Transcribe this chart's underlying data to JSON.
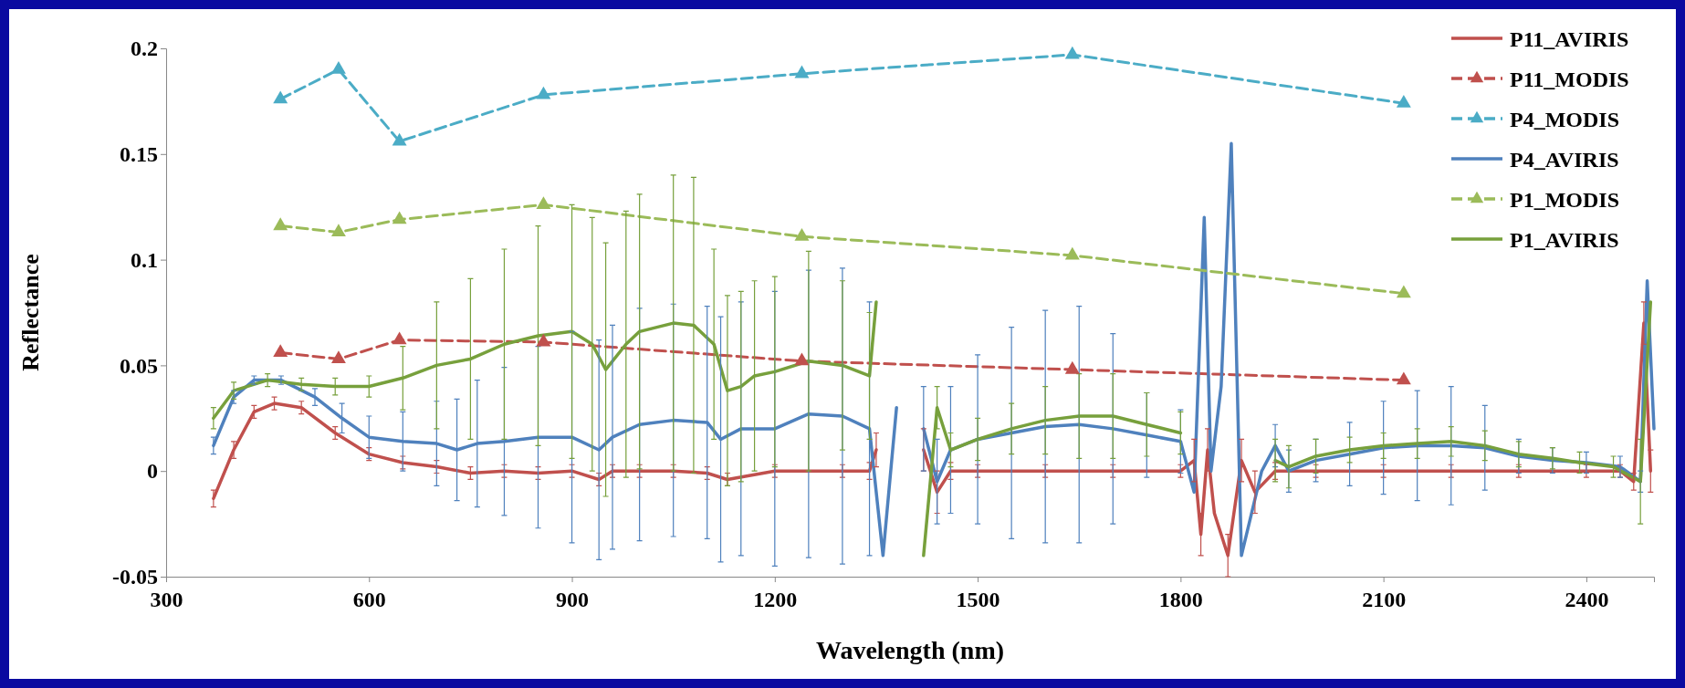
{
  "chart_data": {
    "type": "line",
    "xlabel": "Wavelength (nm)",
    "ylabel": "Reflectance",
    "xlim": [
      300,
      2500
    ],
    "ylim": [
      -0.05,
      0.2
    ],
    "xticks": [
      300,
      600,
      900,
      1200,
      1500,
      1800,
      2100,
      2400
    ],
    "yticks": [
      -0.05,
      0,
      0.05,
      0.1,
      0.15,
      0.2
    ],
    "grid": false,
    "legend": "top right",
    "series": [
      {
        "name": "P11_AVIRIS",
        "color": "#c0504d",
        "marker": "none",
        "line_style": "solid",
        "x": [
          370,
          400,
          430,
          460,
          500,
          550,
          600,
          650,
          700,
          750,
          800,
          850,
          900,
          940,
          960,
          1000,
          1050,
          1100,
          1130,
          1200,
          1300,
          1340,
          1350,
          1370,
          1400,
          1420,
          1440,
          1460,
          1500,
          1600,
          1700,
          1800,
          1820,
          1830,
          1840,
          1850,
          1870,
          1890,
          1910,
          1940,
          2000,
          2100,
          2200,
          2300,
          2400,
          2450,
          2470,
          2485,
          2495
        ],
        "values": [
          -0.013,
          0.01,
          0.028,
          0.032,
          0.03,
          0.018,
          0.008,
          0.004,
          0.002,
          -0.001,
          0,
          -0.001,
          0,
          -0.004,
          0,
          0,
          0,
          -0.001,
          -0.004,
          0,
          0,
          0,
          0.01,
          null,
          null,
          0.01,
          -0.01,
          0,
          0,
          0,
          0,
          0,
          0.005,
          -0.03,
          0.01,
          -0.02,
          -0.04,
          0.005,
          -0.01,
          0,
          0,
          0,
          0,
          0,
          0,
          0,
          -0.005,
          0.07,
          0
        ],
        "errors": [
          0.004,
          0.004,
          0.003,
          0.003,
          0.003,
          0.003,
          0.003,
          0.003,
          0.003,
          0.003,
          0.003,
          0.003,
          0.003,
          0.003,
          0.003,
          0.003,
          0.003,
          0.003,
          0.003,
          0.003,
          0.003,
          0.004,
          0.008,
          null,
          null,
          0.01,
          0.01,
          0.004,
          0.003,
          0.003,
          0.003,
          0.003,
          0.01,
          0.01,
          0.01,
          null,
          0.01,
          0.01,
          0.01,
          0.004,
          0.003,
          0.003,
          0.003,
          0.003,
          0.003,
          0.003,
          0.004,
          0.01,
          0.01
        ]
      },
      {
        "name": "P11_MODIS",
        "color": "#c0504d",
        "marker": "triangle",
        "line_style": "dashed",
        "x": [
          469,
          555,
          645,
          858,
          1240,
          1640,
          2130
        ],
        "values": [
          0.056,
          0.053,
          0.062,
          0.061,
          0.052,
          0.048,
          0.043
        ]
      },
      {
        "name": "P4_MODIS",
        "color": "#4bacc6",
        "marker": "triangle",
        "line_style": "dashed",
        "x": [
          469,
          555,
          645,
          858,
          1240,
          1640,
          2130
        ],
        "values": [
          0.176,
          0.19,
          0.156,
          0.178,
          0.188,
          0.197,
          0.174
        ]
      },
      {
        "name": "P4_AVIRIS",
        "color": "#4f81bd",
        "marker": "none",
        "line_style": "solid",
        "x": [
          370,
          400,
          430,
          470,
          520,
          560,
          600,
          650,
          700,
          730,
          760,
          800,
          850,
          900,
          940,
          960,
          1000,
          1050,
          1100,
          1120,
          1150,
          1200,
          1250,
          1300,
          1340,
          1360,
          1380,
          1390,
          1420,
          1440,
          1460,
          1500,
          1550,
          1600,
          1650,
          1700,
          1750,
          1800,
          1820,
          1835,
          1845,
          1860,
          1875,
          1890,
          1920,
          1940,
          1960,
          2000,
          2050,
          2100,
          2150,
          2200,
          2250,
          2300,
          2350,
          2400,
          2450,
          2480,
          2490,
          2500
        ],
        "values": [
          0.012,
          0.035,
          0.043,
          0.043,
          0.035,
          0.025,
          0.016,
          0.014,
          0.013,
          0.01,
          0.013,
          0.014,
          0.016,
          0.016,
          0.01,
          0.016,
          0.022,
          0.024,
          0.023,
          0.015,
          0.02,
          0.02,
          0.027,
          0.026,
          0.02,
          -0.04,
          0.03,
          null,
          0.02,
          -0.005,
          0.01,
          0.015,
          0.018,
          0.021,
          0.022,
          0.02,
          0.017,
          0.014,
          -0.01,
          0.12,
          0,
          0.04,
          0.155,
          -0.04,
          0,
          0.012,
          0,
          0.005,
          0.008,
          0.011,
          0.012,
          0.012,
          0.011,
          0.007,
          0.005,
          0.004,
          0.002,
          -0.005,
          0.09,
          0.02
        ],
        "errors": [
          0.004,
          0.003,
          0.002,
          0.002,
          0.004,
          0.007,
          0.01,
          0.014,
          0.02,
          0.024,
          0.03,
          0.035,
          0.043,
          0.05,
          0.052,
          0.053,
          0.055,
          0.055,
          0.055,
          0.058,
          0.06,
          0.065,
          0.068,
          0.07,
          0.06,
          null,
          null,
          null,
          0.02,
          0.02,
          0.03,
          0.04,
          0.05,
          0.055,
          0.056,
          0.045,
          0.02,
          0.015,
          null,
          null,
          null,
          null,
          null,
          null,
          null,
          0.01,
          0.01,
          0.01,
          0.015,
          0.022,
          0.026,
          0.028,
          0.02,
          0.008,
          0.006,
          0.005,
          0.005,
          0.005,
          null,
          null
        ]
      },
      {
        "name": "P1_MODIS",
        "color": "#9bbb59",
        "marker": "triangle",
        "line_style": "dashed",
        "x": [
          469,
          555,
          645,
          858,
          1240,
          1640,
          2130
        ],
        "values": [
          0.116,
          0.113,
          0.119,
          0.126,
          0.111,
          0.102,
          0.084
        ]
      },
      {
        "name": "P1_AVIRIS",
        "color": "#77a03c",
        "marker": "none",
        "line_style": "solid",
        "x": [
          370,
          400,
          450,
          500,
          550,
          600,
          650,
          700,
          750,
          800,
          850,
          900,
          930,
          950,
          980,
          1000,
          1050,
          1080,
          1110,
          1130,
          1150,
          1170,
          1200,
          1250,
          1300,
          1340,
          1350,
          1360,
          1420,
          1440,
          1460,
          1500,
          1550,
          1600,
          1650,
          1700,
          1750,
          1800,
          1815,
          1940,
          1960,
          2000,
          2050,
          2100,
          2150,
          2200,
          2250,
          2300,
          2350,
          2390,
          2440,
          2480,
          2495
        ],
        "values": [
          0.025,
          0.038,
          0.043,
          0.041,
          0.04,
          0.04,
          0.044,
          0.05,
          0.053,
          0.06,
          0.064,
          0.066,
          0.06,
          0.048,
          0.06,
          0.066,
          0.07,
          0.069,
          0.06,
          0.038,
          0.04,
          0.045,
          0.047,
          0.052,
          0.05,
          0.045,
          0.08,
          null,
          -0.04,
          0.03,
          0.01,
          0.015,
          0.02,
          0.024,
          0.026,
          0.026,
          0.022,
          0.018,
          null,
          0.005,
          0.002,
          0.007,
          0.01,
          0.012,
          0.013,
          0.014,
          0.012,
          0.008,
          0.006,
          0.004,
          0.002,
          -0.005,
          0.08
        ],
        "errors": [
          0.005,
          0.004,
          0.003,
          0.003,
          0.004,
          0.005,
          0.015,
          0.03,
          0.038,
          0.045,
          0.052,
          0.06,
          0.06,
          0.06,
          0.063,
          0.065,
          0.07,
          0.07,
          0.045,
          0.045,
          0.045,
          0.045,
          0.045,
          0.052,
          0.04,
          0.03,
          null,
          null,
          null,
          0.01,
          0.008,
          0.01,
          0.012,
          0.016,
          0.02,
          0.02,
          0.015,
          0.01,
          null,
          0.01,
          0.01,
          0.008,
          0.006,
          0.006,
          0.007,
          0.007,
          0.007,
          0.006,
          0.005,
          0.005,
          0.005,
          0.02,
          null
        ]
      }
    ]
  }
}
